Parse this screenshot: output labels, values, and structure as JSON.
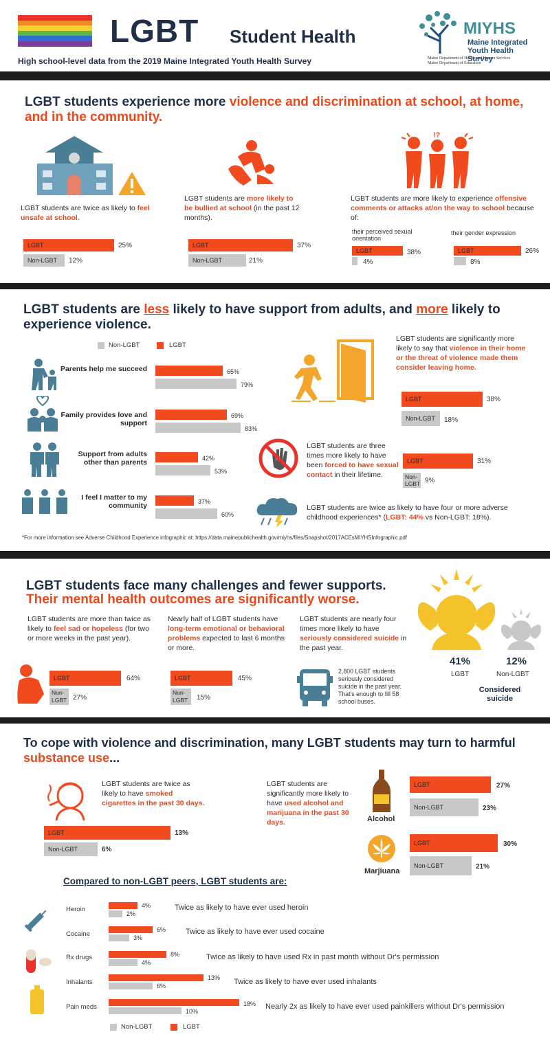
{
  "header": {
    "title": "LGBT",
    "title_suffix": "Student Health",
    "subtitle": "High school-level data from the 2019 Maine Integrated Youth Health Survey",
    "logo_short": "MIYHS",
    "logo_line1": "Maine Integrated",
    "logo_line2": "Youth Health Survey",
    "logo_dept1": "Maine Department of Health and Human Services",
    "logo_dept2": "Maine Department of Education"
  },
  "s1": {
    "h_a": "LGBT students experience more ",
    "h_b": "violence and discrimination at school, at home, and in the community.",
    "c1_a": "LGBT students are twice as likely to ",
    "c1_b": "feel unsafe at school.",
    "c1_lgbt": "25%",
    "c1_non": "12%",
    "c2_a": "LGBT students are ",
    "c2_b": "more likely to be bullied at school",
    "c2_c": " (in the past 12 months).",
    "c2_lgbt": "37%",
    "c2_non": "21%",
    "c3_a": "LGBT students are more likely to experience ",
    "c3_b": "offensive comments or attacks at/on the way to school",
    "c3_c": " because of:",
    "c3_sub1": "their perceived sexual orientation",
    "c3_sub2": "their gender expression",
    "c3a_lgbt": "38%",
    "c3a_non": "4%",
    "c3b_lgbt": "26%",
    "c3b_non": "8%",
    "qmark": "!?"
  },
  "labels": {
    "lgbt": "LGBT",
    "non": "Non-LGBT",
    "non_a": "Non-",
    "non_b": "LGBT"
  },
  "s2": {
    "h_a": "LGBT students are ",
    "h_b": "less",
    "h_c": " likely to have support from adults, and ",
    "h_d": "more",
    "h_e": " likely to experience violence.",
    "legend_non": "Non-LGBT",
    "legend_lgbt": "LGBT",
    "rows": [
      {
        "label": "Parents help me succeed",
        "lgbt": "65%",
        "non": "79%"
      },
      {
        "label": "Family provides love and support",
        "lgbt": "69%",
        "non": "83%"
      },
      {
        "label": "Support from adults other than parents",
        "lgbt": "42%",
        "non": "53%"
      },
      {
        "label": "I feel I matter to my community",
        "lgbt": "37%",
        "non": "60%"
      }
    ],
    "r1_a": "LGBT students are significantly more likely to say that ",
    "r1_b": "violence in their home or the threat of violence made them consider leaving home.",
    "r1_lgbt": "38%",
    "r1_non": "18%",
    "r2_a": "LGBT students are three times more likely to have been ",
    "r2_b": "forced to have sexual contact",
    "r2_c": " in their lifetime.",
    "r2_lgbt": "31%",
    "r2_non": "9%",
    "r3_a": "LGBT students are twice as likely to have four or more adverse childhood experiences* (",
    "r3_b": "LGBT: 44%",
    "r3_c": " vs Non-LGBT: 18%).",
    "footnote": "*For more information see Adverse Childhood Experience infographic at: https://data.mainepublichealth.gov/miyhs/files/Snapshot/2017ACEsMIYHSInfographic.pdf"
  },
  "s3": {
    "h1": "LGBT students face many challenges and fewer supports.",
    "h2": "Their mental health outcomes are significantly worse.",
    "c1_a": "LGBT students are more than twice as likely to ",
    "c1_b": "feel sad or hopeless",
    "c1_c": " (for two or more weeks in the past year).",
    "c1_lgbt": "64%",
    "c1_non": "27%",
    "c2_a": "Nearly half of LGBT students have ",
    "c2_b": "long-term emotional or behavioral problems",
    "c2_c": " expected to last 6 months or more.",
    "c2_lgbt": "45%",
    "c2_non": "15%",
    "c3_a": "LGBT students are nearly four times more likely to have ",
    "c3_b": "seriously considered suicide",
    "c3_c": " in the past year.",
    "bus_text": "2,800 LGBT students seriously considered suicide in the past year. That's enough to fill 58 school buses.",
    "big_lgbt": "41%",
    "big_non": "12%",
    "big_caption": "Considered suicide"
  },
  "s4": {
    "h_a": "To cope with violence and discrimination, many LGBT students may turn to harmful ",
    "h_b": "substance use",
    "h_c": "...",
    "cig_a": "LGBT students are twice as likely to have ",
    "cig_b": "smoked cigarettes in the past 30 days.",
    "cig_lgbt": "13%",
    "cig_non": "6%",
    "am_a": "LGBT students are significantly more likely to have ",
    "am_b": "used alcohol and marijuana in the past 30 days.",
    "alcohol": "Alcohol",
    "alc_lgbt": "27%",
    "alc_non": "23%",
    "marijuana": "Marjiuana",
    "mar_lgbt": "30%",
    "mar_non": "21%",
    "compare_title": "Compared to non-LGBT peers, LGBT students are:",
    "drugs": [
      {
        "name": "Heroin",
        "lgbt": "4%",
        "non": "2%",
        "desc": "Twice as likely to have ever used heroin"
      },
      {
        "name": "Cocaine",
        "lgbt": "6%",
        "non": "3%",
        "desc": "Twice as likely to have ever used cocaine"
      },
      {
        "name": "Rx drugs",
        "lgbt": "8%",
        "non": "4%",
        "desc": "Twice as likely to have used Rx in past month without Dr's permission"
      },
      {
        "name": "Inhalants",
        "lgbt": "13%",
        "non": "6%",
        "desc": "Twice as likely to have ever used inhalants"
      },
      {
        "name": "Pain meds",
        "lgbt": "18%",
        "non": "10%",
        "desc": "Nearly 2x as likely to have ever used painkillers without Dr's permission"
      }
    ],
    "legend_non": "Non-LGBT",
    "legend_lgbt": "LGBT"
  },
  "colors": {
    "accent": "#f04a1e",
    "navy": "#1f2f48",
    "gray": "#c8c8c8",
    "teal": "#4a7d96"
  }
}
